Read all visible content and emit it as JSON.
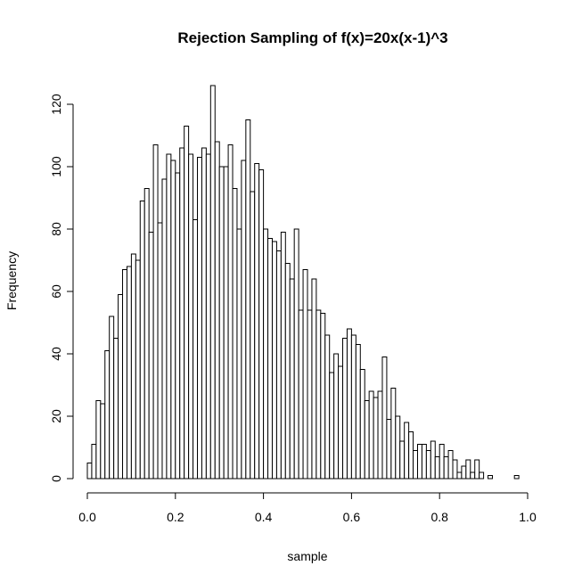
{
  "chart_data": {
    "type": "bar",
    "title": "Rejection Sampling of f(x)=20x(x-1)^3",
    "xlabel": "sample",
    "ylabel": "Frequency",
    "xlim": [
      0,
      1
    ],
    "ylim": [
      0,
      126
    ],
    "x_ticks": [
      "0.0",
      "0.2",
      "0.4",
      "0.6",
      "0.8",
      "1.0"
    ],
    "y_ticks": [
      "0",
      "20",
      "40",
      "60",
      "80",
      "100",
      "120"
    ],
    "grid": false,
    "bin_width": 0.01,
    "bin_start": 0.0,
    "values": [
      5,
      11,
      25,
      24,
      41,
      52,
      45,
      59,
      67,
      68,
      72,
      70,
      89,
      93,
      79,
      107,
      82,
      96,
      104,
      102,
      98,
      106,
      113,
      104,
      83,
      103,
      106,
      104,
      126,
      108,
      100,
      100,
      107,
      93,
      80,
      102,
      115,
      92,
      101,
      99,
      80,
      77,
      76,
      73,
      79,
      69,
      64,
      80,
      54,
      67,
      54,
      64,
      54,
      53,
      46,
      34,
      40,
      36,
      45,
      48,
      46,
      43,
      35,
      25,
      28,
      26,
      28,
      39,
      19,
      29,
      20,
      12,
      18,
      15,
      9,
      11,
      11,
      9,
      12,
      7,
      11,
      7,
      9,
      6,
      2,
      4,
      6,
      2,
      6,
      2,
      0,
      1,
      0,
      0,
      0,
      0,
      0,
      1
    ]
  }
}
